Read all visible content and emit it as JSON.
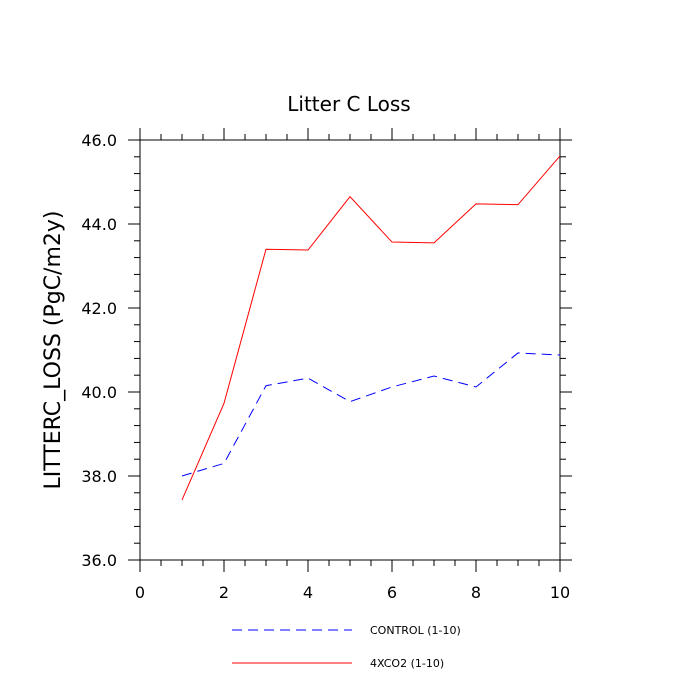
{
  "chart_data": {
    "type": "line",
    "title": "Litter C Loss",
    "xlabel": "",
    "ylabel": "LITTERC_LOSS  (PgC/m2y)",
    "xlim": [
      0,
      10
    ],
    "ylim": [
      36,
      46
    ],
    "x_ticks": [
      0,
      2,
      4,
      6,
      8,
      10
    ],
    "x_tick_labels": [
      "0",
      "2",
      "4",
      "6",
      "8",
      "10"
    ],
    "y_ticks": [
      36,
      38,
      40,
      42,
      44,
      46
    ],
    "y_tick_labels": [
      "36.0",
      "38.0",
      "40.0",
      "42.0",
      "44.0",
      "46.0"
    ],
    "x": [
      1,
      2,
      3,
      4,
      5,
      6,
      7,
      8,
      9,
      10
    ],
    "series": [
      {
        "name": "CONTROL (1-10)",
        "color": "#0000ff",
        "dash": "dashed",
        "values": [
          38.0,
          38.3,
          40.15,
          40.33,
          39.77,
          40.12,
          40.38,
          40.12,
          40.93,
          40.88
        ]
      },
      {
        "name": "4XCO2 (1-10)",
        "color": "#ff0000",
        "dash": "solid",
        "values": [
          37.43,
          39.73,
          43.4,
          43.38,
          44.65,
          43.57,
          43.55,
          44.48,
          44.46,
          45.62
        ]
      }
    ],
    "legend_position": "bottom"
  }
}
